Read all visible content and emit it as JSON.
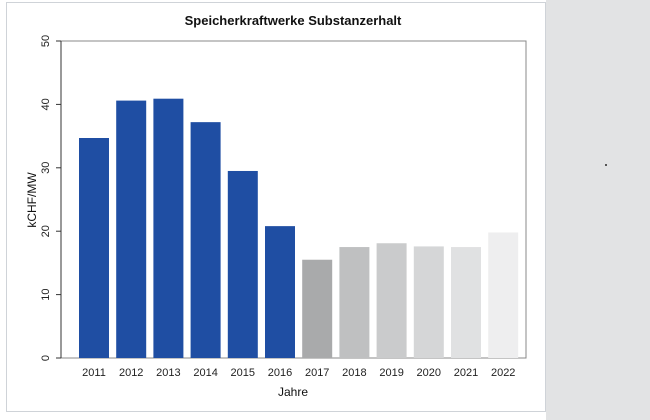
{
  "chart_data": {
    "type": "bar",
    "title": "Speicherkraftwerke Substanzerhalt",
    "xlabel": "Jahre",
    "ylabel": "kCHF/MW",
    "ylim": [
      0,
      50
    ],
    "yticks": [
      0,
      10,
      20,
      30,
      40,
      50
    ],
    "categories": [
      "2011",
      "2012",
      "2013",
      "2014",
      "2015",
      "2016",
      "2017",
      "2018",
      "2019",
      "2020",
      "2021",
      "2022"
    ],
    "values": [
      34.7,
      40.6,
      40.9,
      37.2,
      29.5,
      20.8,
      15.5,
      17.5,
      18.1,
      17.6,
      17.5,
      19.8
    ],
    "bar_colors": [
      "#1f4ea3",
      "#1f4ea3",
      "#1f4ea3",
      "#1f4ea3",
      "#1f4ea3",
      "#1f4ea3",
      "#a9aaab",
      "#bfc0c1",
      "#cacbcc",
      "#d5d6d7",
      "#e0e1e2",
      "#eeeeef"
    ],
    "grid": false,
    "legend": "none"
  }
}
